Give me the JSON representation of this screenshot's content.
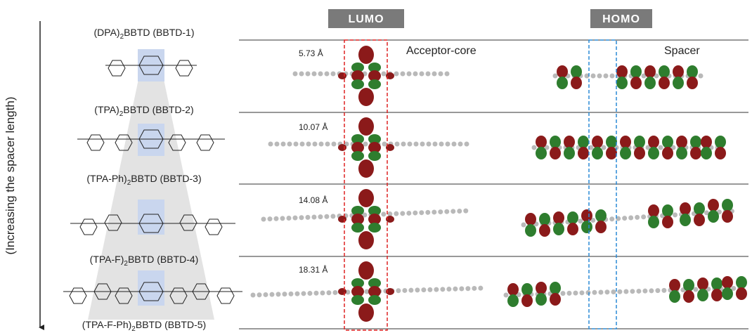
{
  "header": {
    "lumo": "LUMO",
    "homo": "HOMO"
  },
  "axis_label": "(Increasing the spacer length)",
  "annotations": {
    "acceptor_core": "Acceptor-core",
    "spacer": "Spacer"
  },
  "labels": [
    {
      "prefix": "(DPA)",
      "sub": "2",
      "suffix": "BBTD (BBTD-1)"
    },
    {
      "prefix": "(TPA)",
      "sub": "2",
      "suffix": "BBTD (BBTD-2)"
    },
    {
      "prefix": "(TPA-Ph)",
      "sub": "2",
      "suffix": "BBTD (BBTD-3)"
    },
    {
      "prefix": "(TPA-F)",
      "sub": "2",
      "suffix": "BBTD (BBTD-4)"
    },
    {
      "prefix": "(TPA-F-Ph)",
      "sub": "2",
      "suffix": "BBTD (BBTD-5)"
    }
  ],
  "distances": [
    "5.73 Å",
    "10.07 Å",
    "14.08 Å",
    "18.31 Å"
  ]
}
